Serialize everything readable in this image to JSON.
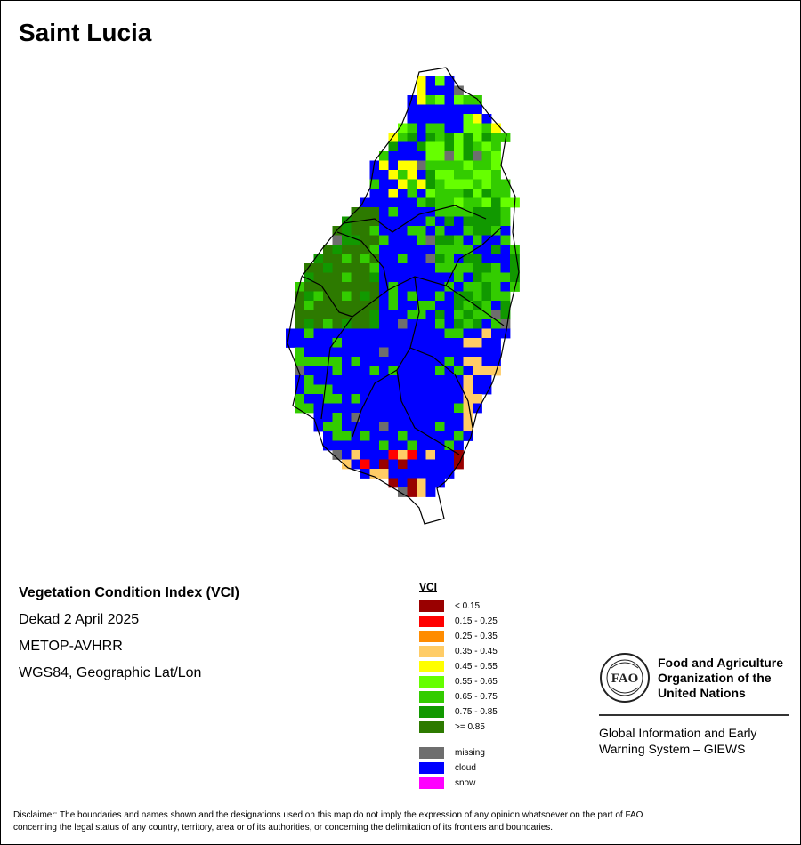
{
  "title": "Saint Lucia",
  "info": {
    "index_name": "Vegetation Condition Index (VCI)",
    "period": "Dekad 2 April 2025",
    "sensor": "METOP-AVHRR",
    "projection": "WGS84, Geographic Lat/Lon"
  },
  "legend": {
    "title": "VCI",
    "classes": [
      {
        "label": "< 0.15",
        "color": "#990000"
      },
      {
        "label": "0.15 - 0.25",
        "color": "#ff0000"
      },
      {
        "label": "0.25 - 0.35",
        "color": "#ff8c00"
      },
      {
        "label": "0.35 - 0.45",
        "color": "#ffcc66"
      },
      {
        "label": "0.45 - 0.55",
        "color": "#ffff00"
      },
      {
        "label": "0.55 - 0.65",
        "color": "#66ff00"
      },
      {
        "label": "0.65 - 0.75",
        "color": "#33cc00"
      },
      {
        "label": "0.75 - 0.85",
        "color": "#119900"
      },
      {
        "label": ">= 0.85",
        "color": "#2d7a00"
      }
    ],
    "special": [
      {
        "label": "missing",
        "color": "#6e6e6e"
      },
      {
        "label": "cloud",
        "color": "#0000ff"
      },
      {
        "label": "snow",
        "color": "#ff00ff"
      }
    ]
  },
  "org": {
    "name_line1": "Food and Agriculture",
    "name_line2": "Organization of the",
    "name_line3": "United Nations",
    "system_line1": "Global Information and Early",
    "system_line2": "Warning System – GIEWS",
    "logo_text": "FAO"
  },
  "disclaimer_line1": "Disclaimer: The boundaries and names shown and the designations used on this map do not imply the expression of any opinion whatsoever on the part of FAO",
  "disclaimer_line2": "concerning the legal status of any country, territory, area or of its authorities, or concerning the delimitation of its frontiers and boundaries."
}
